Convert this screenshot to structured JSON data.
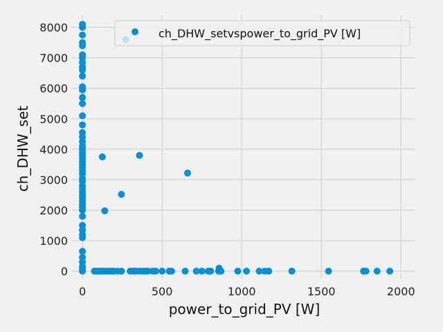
{
  "chart_data": {
    "type": "scatter",
    "xlabel": "power_to_grid_PV [W]",
    "ylabel": "ch_DHW_set",
    "xlim": [
      -70,
      2090
    ],
    "ylim": [
      -250,
      8400
    ],
    "xticks": [
      0,
      500,
      1000,
      1500,
      2000
    ],
    "yticks": [
      0,
      1000,
      2000,
      3000,
      4000,
      5000,
      6000,
      7000,
      8000
    ],
    "grid": true,
    "legend": "top-right",
    "series": [
      {
        "name": "ch_DHW_setvspower_to_grid_PV [W]",
        "color": "#008fd5",
        "points": [
          [
            0,
            8100
          ],
          [
            0,
            8000
          ],
          [
            0,
            7750
          ],
          [
            0,
            7500
          ],
          [
            0,
            7400
          ],
          [
            0,
            7100
          ],
          [
            0,
            7000
          ],
          [
            0,
            6850
          ],
          [
            0,
            6700
          ],
          [
            0,
            6600
          ],
          [
            0,
            6400
          ],
          [
            0,
            6050
          ],
          [
            0,
            5950
          ],
          [
            0,
            5700
          ],
          [
            0,
            5500
          ],
          [
            0,
            5100
          ],
          [
            0,
            4800
          ],
          [
            0,
            4550
          ],
          [
            0,
            4400
          ],
          [
            0,
            4250
          ],
          [
            0,
            4100
          ],
          [
            0,
            4000
          ],
          [
            0,
            3900
          ],
          [
            0,
            3800
          ],
          [
            0,
            3700
          ],
          [
            0,
            3600
          ],
          [
            0,
            3500
          ],
          [
            0,
            3400
          ],
          [
            0,
            3300
          ],
          [
            0,
            3200
          ],
          [
            0,
            3050
          ],
          [
            0,
            2950
          ],
          [
            0,
            2800
          ],
          [
            0,
            2700
          ],
          [
            0,
            2600
          ],
          [
            0,
            2500
          ],
          [
            0,
            2400
          ],
          [
            0,
            2300
          ],
          [
            0,
            2200
          ],
          [
            0,
            2100
          ],
          [
            0,
            2000
          ],
          [
            0,
            1800
          ],
          [
            0,
            1500
          ],
          [
            0,
            1350
          ],
          [
            0,
            1200
          ],
          [
            0,
            1100
          ],
          [
            0,
            650
          ],
          [
            0,
            450
          ],
          [
            0,
            300
          ],
          [
            0,
            150
          ],
          [
            0,
            50
          ],
          [
            0,
            0
          ],
          [
            75,
            0
          ],
          [
            90,
            0
          ],
          [
            100,
            0
          ],
          [
            115,
            0
          ],
          [
            130,
            0
          ],
          [
            145,
            0
          ],
          [
            165,
            0
          ],
          [
            180,
            0
          ],
          [
            195,
            0
          ],
          [
            220,
            0
          ],
          [
            245,
            0
          ],
          [
            300,
            0
          ],
          [
            320,
            0
          ],
          [
            335,
            0
          ],
          [
            360,
            0
          ],
          [
            380,
            0
          ],
          [
            395,
            0
          ],
          [
            410,
            0
          ],
          [
            440,
            0
          ],
          [
            460,
            0
          ],
          [
            500,
            0
          ],
          [
            545,
            0
          ],
          [
            560,
            0
          ],
          [
            645,
            0
          ],
          [
            715,
            0
          ],
          [
            750,
            0
          ],
          [
            790,
            0
          ],
          [
            805,
            0
          ],
          [
            855,
            0
          ],
          [
            870,
            0
          ],
          [
            975,
            0
          ],
          [
            1030,
            0
          ],
          [
            1110,
            0
          ],
          [
            1145,
            0
          ],
          [
            1170,
            0
          ],
          [
            1315,
            0
          ],
          [
            1545,
            0
          ],
          [
            1765,
            0
          ],
          [
            1780,
            0
          ],
          [
            1850,
            0
          ],
          [
            1930,
            0
          ],
          [
            858,
            95
          ],
          [
            272,
            7600
          ],
          [
            125,
            3750
          ],
          [
            358,
            3800
          ],
          [
            660,
            3220
          ],
          [
            245,
            2520
          ],
          [
            140,
            1980
          ]
        ]
      }
    ]
  }
}
